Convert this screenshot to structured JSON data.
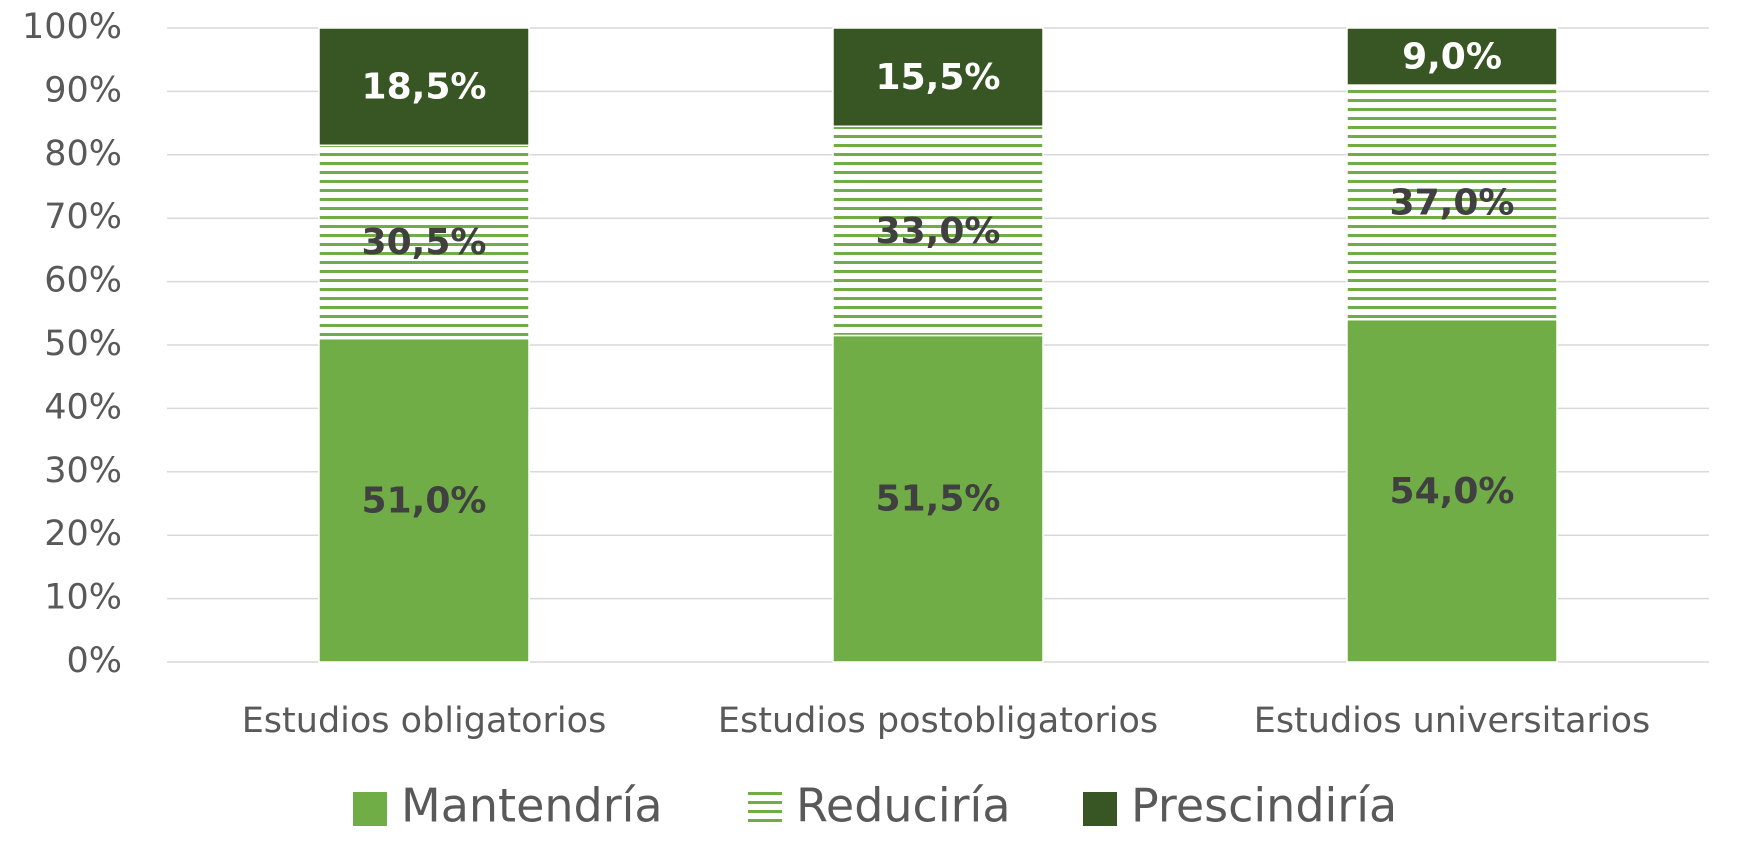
{
  "chart_data": {
    "type": "stacked_bar",
    "categories": [
      "Estudios obligatorios",
      "Estudios postobligatorios",
      "Estudios universitarios"
    ],
    "series": [
      {
        "name": "Mantendría",
        "color": "#70ad47",
        "fill": "solid",
        "label_color": "#404040",
        "values": [
          51.0,
          51.5,
          54.0
        ],
        "value_labels": [
          "51,0%",
          "51,5%",
          "54,0%"
        ]
      },
      {
        "name": "Reduciría",
        "color": "#70ad47",
        "fill": "horizontal-stripes",
        "label_color": "#404040",
        "values": [
          30.5,
          33.0,
          37.0
        ],
        "value_labels": [
          "30,5%",
          "33,0%",
          "37,0%"
        ]
      },
      {
        "name": "Prescindiría",
        "color": "#375623",
        "fill": "solid",
        "label_color": "#ffffff",
        "values": [
          18.5,
          15.5,
          9.0
        ],
        "value_labels": [
          "18,5%",
          "15,5%",
          "9,0%"
        ]
      }
    ],
    "ylim": [
      0,
      100
    ],
    "yticks": [
      {
        "value": 0,
        "label": "0%"
      },
      {
        "value": 10,
        "label": "10%"
      },
      {
        "value": 20,
        "label": "20%"
      },
      {
        "value": 30,
        "label": "30%"
      },
      {
        "value": 40,
        "label": "40%"
      },
      {
        "value": 50,
        "label": "50%"
      },
      {
        "value": 60,
        "label": "60%"
      },
      {
        "value": 70,
        "label": "70%"
      },
      {
        "value": 80,
        "label": "80%"
      },
      {
        "value": 90,
        "label": "90%"
      },
      {
        "value": 100,
        "label": "100%"
      }
    ],
    "grid": true,
    "legend": "bottom"
  }
}
